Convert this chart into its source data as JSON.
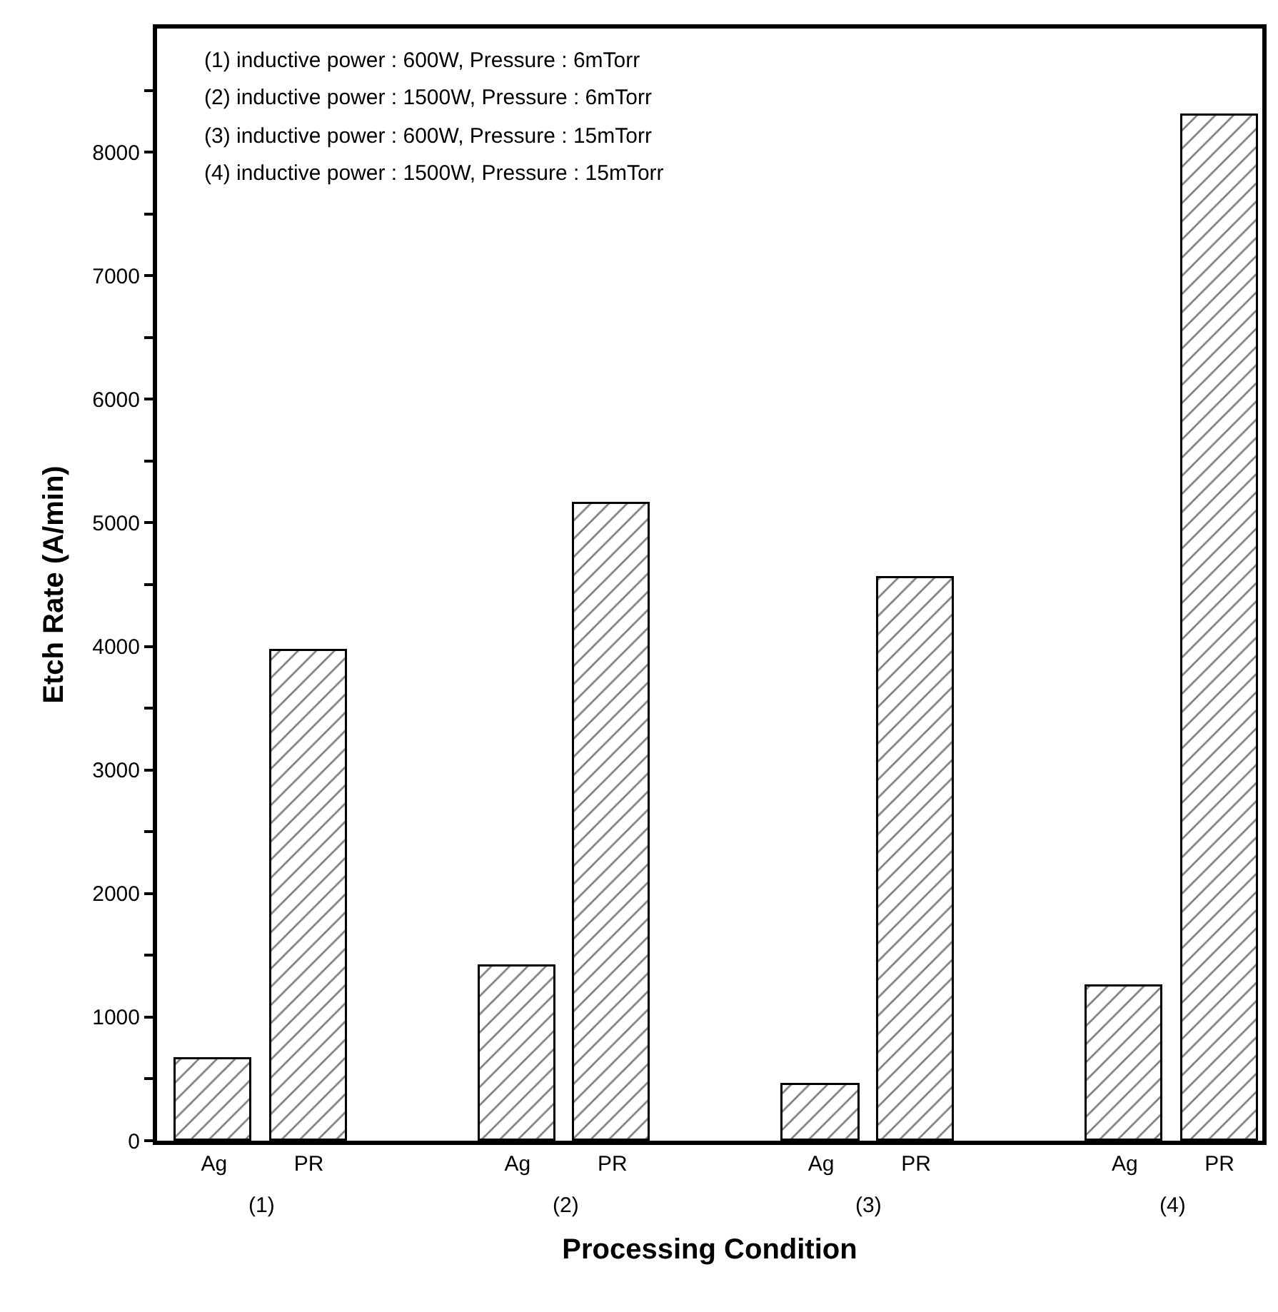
{
  "chart_data": {
    "type": "bar",
    "xlabel": "Processing Condition",
    "ylabel": "Etch Rate (A/min)",
    "categories": [
      "Ag",
      "PR",
      "Ag",
      "PR",
      "Ag",
      "PR",
      "Ag",
      "PR"
    ],
    "values": [
      660,
      3960,
      1410,
      5150,
      450,
      4550,
      1250,
      8290
    ],
    "color": "#000000",
    "ylim": [
      0,
      9000
    ],
    "yticks": [
      0,
      {
        "value": 500,
        "label": null
      },
      1000,
      {
        "value": 1500,
        "label": null
      },
      2000,
      {
        "value": 2500,
        "label": null
      },
      3000,
      {
        "value": 3500,
        "label": null
      },
      4000,
      {
        "value": 4500,
        "label": null
      },
      5000,
      {
        "value": 5500,
        "label": null
      },
      6000,
      {
        "value": 6500,
        "label": null
      },
      7000,
      {
        "value": 7500,
        "label": null
      },
      8000,
      {
        "value": 8500,
        "label": null
      }
    ],
    "annotations": [
      "(1) inductive power : 600W, Pressure : 6mTorr",
      "(2) inductive power : 1500W, Pressure : 6mTorr",
      "(3) inductive power : 600W, Pressure : 15mTorr",
      "(4) inductive power : 1500W, Pressure : 15mTorr",
      "(1)",
      "(2)",
      "(3)",
      "(4)"
    ],
    "legend": false
  }
}
